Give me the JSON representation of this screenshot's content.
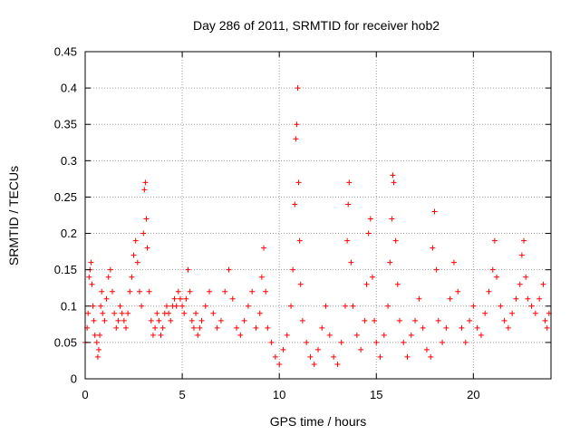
{
  "chart_data": {
    "type": "scatter",
    "title": "Day 286 of 2011, SRMTID for receiver hob2",
    "xlabel": "GPS time / hours",
    "ylabel": "SRMTID / TECUs",
    "xlim": [
      0,
      24
    ],
    "ylim": [
      0,
      0.45
    ],
    "xticks": [
      0,
      5,
      10,
      15,
      20
    ],
    "yticks": [
      0,
      0.05,
      0.1,
      0.15,
      0.2,
      0.25,
      0.3,
      0.35,
      0.4,
      0.45
    ],
    "ytick_labels": [
      "0",
      "0.05",
      "0.1",
      "0.15",
      "0.2",
      "0.25",
      "0.3",
      "0.35",
      "0.4",
      "0.45"
    ],
    "grid": true,
    "marker": "plus",
    "color": "#ff0000",
    "series": [
      {
        "points": [
          [
            0.0,
            0.05
          ],
          [
            0.1,
            0.07
          ],
          [
            0.15,
            0.09
          ],
          [
            0.2,
            0.14
          ],
          [
            0.25,
            0.15
          ],
          [
            0.3,
            0.16
          ],
          [
            0.35,
            0.13
          ],
          [
            0.4,
            0.1
          ],
          [
            0.45,
            0.08
          ],
          [
            0.5,
            0.06
          ],
          [
            0.6,
            0.05
          ],
          [
            0.65,
            0.03
          ],
          [
            0.7,
            0.04
          ],
          [
            0.75,
            0.06
          ],
          [
            0.8,
            0.1
          ],
          [
            0.85,
            0.12
          ],
          [
            0.9,
            0.09
          ],
          [
            1.0,
            0.08
          ],
          [
            1.1,
            0.11
          ],
          [
            1.2,
            0.14
          ],
          [
            1.3,
            0.15
          ],
          [
            1.4,
            0.12
          ],
          [
            1.5,
            0.09
          ],
          [
            1.6,
            0.07
          ],
          [
            1.7,
            0.08
          ],
          [
            1.8,
            0.1
          ],
          [
            1.9,
            0.09
          ],
          [
            2.0,
            0.08
          ],
          [
            2.1,
            0.07
          ],
          [
            2.2,
            0.09
          ],
          [
            2.3,
            0.12
          ],
          [
            2.4,
            0.14
          ],
          [
            2.5,
            0.17
          ],
          [
            2.6,
            0.19
          ],
          [
            2.7,
            0.16
          ],
          [
            2.8,
            0.12
          ],
          [
            2.9,
            0.1
          ],
          [
            3.0,
            0.2
          ],
          [
            3.05,
            0.26
          ],
          [
            3.1,
            0.27
          ],
          [
            3.15,
            0.22
          ],
          [
            3.2,
            0.18
          ],
          [
            3.3,
            0.12
          ],
          [
            3.4,
            0.08
          ],
          [
            3.5,
            0.06
          ],
          [
            3.6,
            0.07
          ],
          [
            3.7,
            0.09
          ],
          [
            3.8,
            0.08
          ],
          [
            3.9,
            0.06
          ],
          [
            4.0,
            0.07
          ],
          [
            4.1,
            0.09
          ],
          [
            4.2,
            0.1
          ],
          [
            4.3,
            0.09
          ],
          [
            4.4,
            0.08
          ],
          [
            4.5,
            0.1
          ],
          [
            4.6,
            0.11
          ],
          [
            4.7,
            0.1
          ],
          [
            4.8,
            0.12
          ],
          [
            4.9,
            0.11
          ],
          [
            5.0,
            0.1
          ],
          [
            5.1,
            0.09
          ],
          [
            5.2,
            0.11
          ],
          [
            5.3,
            0.15
          ],
          [
            5.4,
            0.12
          ],
          [
            5.5,
            0.08
          ],
          [
            5.6,
            0.07
          ],
          [
            5.7,
            0.09
          ],
          [
            5.8,
            0.06
          ],
          [
            5.9,
            0.07
          ],
          [
            6.0,
            0.08
          ],
          [
            6.2,
            0.1
          ],
          [
            6.4,
            0.12
          ],
          [
            6.6,
            0.09
          ],
          [
            6.8,
            0.07
          ],
          [
            7.0,
            0.08
          ],
          [
            7.2,
            0.12
          ],
          [
            7.4,
            0.15
          ],
          [
            7.6,
            0.11
          ],
          [
            7.8,
            0.07
          ],
          [
            8.0,
            0.06
          ],
          [
            8.2,
            0.08
          ],
          [
            8.4,
            0.1
          ],
          [
            8.6,
            0.12
          ],
          [
            8.8,
            0.07
          ],
          [
            9.0,
            0.09
          ],
          [
            9.1,
            0.14
          ],
          [
            9.2,
            0.18
          ],
          [
            9.3,
            0.12
          ],
          [
            9.4,
            0.07
          ],
          [
            9.6,
            0.05
          ],
          [
            9.8,
            0.03
          ],
          [
            10.0,
            0.02
          ],
          [
            10.2,
            0.04
          ],
          [
            10.4,
            0.06
          ],
          [
            10.6,
            0.1
          ],
          [
            10.7,
            0.15
          ],
          [
            10.8,
            0.24
          ],
          [
            10.85,
            0.33
          ],
          [
            10.9,
            0.35
          ],
          [
            10.95,
            0.4
          ],
          [
            11.0,
            0.27
          ],
          [
            11.05,
            0.19
          ],
          [
            11.1,
            0.13
          ],
          [
            11.2,
            0.08
          ],
          [
            11.4,
            0.05
          ],
          [
            11.6,
            0.03
          ],
          [
            11.8,
            0.02
          ],
          [
            12.0,
            0.04
          ],
          [
            12.2,
            0.07
          ],
          [
            12.4,
            0.1
          ],
          [
            12.6,
            0.06
          ],
          [
            12.8,
            0.03
          ],
          [
            13.0,
            0.02
          ],
          [
            13.2,
            0.05
          ],
          [
            13.4,
            0.1
          ],
          [
            13.5,
            0.19
          ],
          [
            13.55,
            0.24
          ],
          [
            13.6,
            0.27
          ],
          [
            13.7,
            0.16
          ],
          [
            13.8,
            0.1
          ],
          [
            14.0,
            0.06
          ],
          [
            14.2,
            0.04
          ],
          [
            14.4,
            0.08
          ],
          [
            14.5,
            0.13
          ],
          [
            14.6,
            0.2
          ],
          [
            14.7,
            0.22
          ],
          [
            14.8,
            0.14
          ],
          [
            14.9,
            0.08
          ],
          [
            15.0,
            0.05
          ],
          [
            15.2,
            0.03
          ],
          [
            15.4,
            0.06
          ],
          [
            15.6,
            0.1
          ],
          [
            15.7,
            0.16
          ],
          [
            15.8,
            0.22
          ],
          [
            15.85,
            0.28
          ],
          [
            15.9,
            0.27
          ],
          [
            16.0,
            0.19
          ],
          [
            16.1,
            0.13
          ],
          [
            16.2,
            0.08
          ],
          [
            16.4,
            0.05
          ],
          [
            16.6,
            0.03
          ],
          [
            16.8,
            0.06
          ],
          [
            17.0,
            0.08
          ],
          [
            17.2,
            0.11
          ],
          [
            17.4,
            0.07
          ],
          [
            17.6,
            0.04
          ],
          [
            17.8,
            0.03
          ],
          [
            17.9,
            0.18
          ],
          [
            18.0,
            0.23
          ],
          [
            18.1,
            0.15
          ],
          [
            18.2,
            0.08
          ],
          [
            18.4,
            0.05
          ],
          [
            18.6,
            0.07
          ],
          [
            18.8,
            0.11
          ],
          [
            19.0,
            0.16
          ],
          [
            19.2,
            0.12
          ],
          [
            19.4,
            0.07
          ],
          [
            19.6,
            0.05
          ],
          [
            19.8,
            0.08
          ],
          [
            20.0,
            0.1
          ],
          [
            20.2,
            0.07
          ],
          [
            20.4,
            0.06
          ],
          [
            20.6,
            0.09
          ],
          [
            20.8,
            0.12
          ],
          [
            21.0,
            0.15
          ],
          [
            21.1,
            0.19
          ],
          [
            21.2,
            0.14
          ],
          [
            21.4,
            0.1
          ],
          [
            21.6,
            0.08
          ],
          [
            21.8,
            0.07
          ],
          [
            22.0,
            0.09
          ],
          [
            22.2,
            0.11
          ],
          [
            22.4,
            0.13
          ],
          [
            22.5,
            0.17
          ],
          [
            22.6,
            0.19
          ],
          [
            22.7,
            0.14
          ],
          [
            22.8,
            0.11
          ],
          [
            23.0,
            0.1
          ],
          [
            23.2,
            0.09
          ],
          [
            23.4,
            0.11
          ],
          [
            23.6,
            0.13
          ],
          [
            23.7,
            0.08
          ],
          [
            23.8,
            0.07
          ],
          [
            23.9,
            0.09
          ]
        ]
      }
    ]
  }
}
